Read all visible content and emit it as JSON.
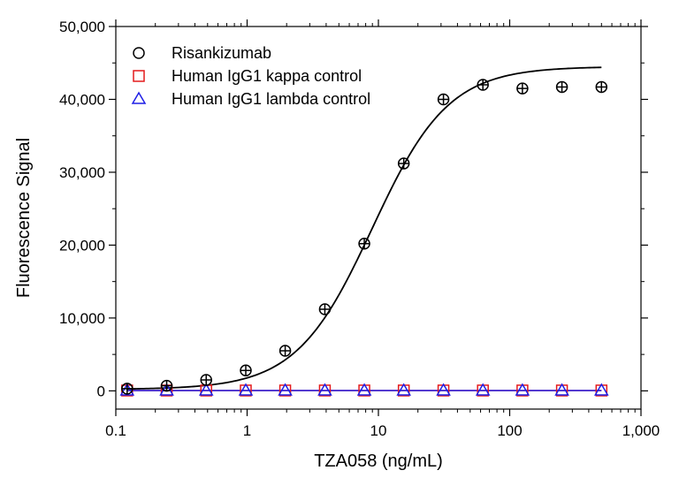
{
  "chart_data": {
    "type": "scatter",
    "title": "",
    "xlabel": "TZA058 (ng/mL)",
    "ylabel": "Fluorescence Signal",
    "x_scale": "log",
    "xlim": [
      0.1,
      1000
    ],
    "ylim": [
      -2500,
      50000
    ],
    "x_ticks": [
      0.1,
      1,
      10,
      100,
      1000
    ],
    "x_tick_labels": [
      "0.1",
      "1",
      "10",
      "100",
      "1,000"
    ],
    "y_ticks": [
      0,
      10000,
      20000,
      30000,
      40000,
      50000
    ],
    "y_tick_labels": [
      "0",
      "10,000",
      "20,000",
      "30,000",
      "40,000",
      "50,000"
    ],
    "grid": false,
    "legend_position": "top-left",
    "x": [
      0.122,
      0.244,
      0.488,
      0.977,
      1.95,
      3.91,
      7.81,
      15.6,
      31.3,
      62.5,
      125,
      250,
      500
    ],
    "series": [
      {
        "name": "Risankizumab",
        "marker": "circle",
        "color": "#000000",
        "values": [
          300,
          700,
          1500,
          2800,
          5500,
          11200,
          20200,
          31200,
          40000,
          42000,
          41500,
          41700,
          41700
        ],
        "fit": {
          "model": "4PL",
          "bottom": 200,
          "top": 44500,
          "ec50": 9,
          "hill": 1.5
        }
      },
      {
        "name": "Human IgG1 kappa control",
        "marker": "square",
        "color": "#e41a1c",
        "values": [
          50,
          50,
          50,
          50,
          50,
          50,
          50,
          50,
          50,
          50,
          50,
          50,
          50
        ]
      },
      {
        "name": "Human IgG1 lambda control",
        "marker": "triangle",
        "color": "#1f1fe6",
        "values": [
          50,
          50,
          50,
          50,
          50,
          50,
          50,
          50,
          50,
          50,
          50,
          50,
          50
        ]
      }
    ]
  }
}
